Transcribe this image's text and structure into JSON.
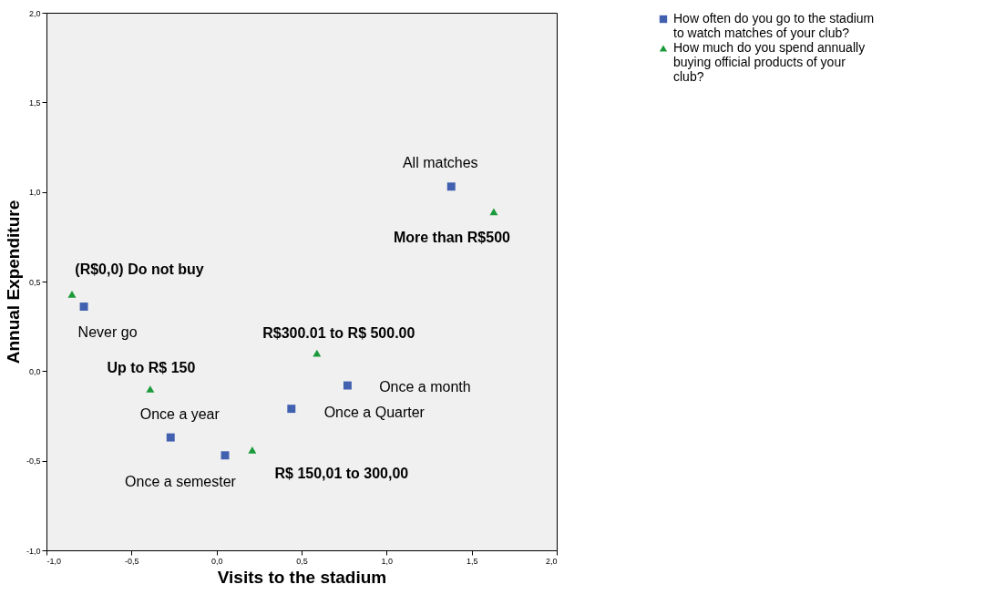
{
  "chart_data": {
    "type": "scatter",
    "xlabel": "Visits to the stadium",
    "ylabel": "Annual Expenditure",
    "xlim": [
      -1,
      2
    ],
    "ylim": [
      -1,
      2
    ],
    "xticks": [
      {
        "value": -1,
        "label": "-1,0"
      },
      {
        "value": -0.5,
        "label": "-0,5"
      },
      {
        "value": 0,
        "label": "0,0"
      },
      {
        "value": 0.5,
        "label": "0,5"
      },
      {
        "value": 1,
        "label": "1,0"
      },
      {
        "value": 1.5,
        "label": "1,5"
      },
      {
        "value": 2,
        "label": "2,0"
      }
    ],
    "yticks": [
      {
        "value": -1,
        "label": "-1,0"
      },
      {
        "value": -0.5,
        "label": "-0,5"
      },
      {
        "value": 0,
        "label": "0,0"
      },
      {
        "value": 0.5,
        "label": "0,5"
      },
      {
        "value": 1,
        "label": "1,0"
      },
      {
        "value": 1.5,
        "label": "1,5"
      },
      {
        "value": 2,
        "label": "2,0"
      }
    ],
    "grid": false,
    "legend": "top right",
    "series": [
      {
        "name": "How often do you go to the stadium to watch matches of your club?",
        "color": "#4160b0",
        "marker": "square",
        "x": [
          1.38,
          -0.78,
          0.77,
          0.44,
          -0.27,
          0.05
        ],
        "values": [
          1.03,
          0.36,
          -0.08,
          -0.21,
          -0.37,
          -0.47
        ]
      },
      {
        "name": "How much do you spend annually buying official products of your club?",
        "color": "#1a9a3a",
        "marker": "triangle",
        "x": [
          1.63,
          -0.85,
          0.59,
          -0.39,
          0.21
        ],
        "values": [
          0.89,
          0.43,
          0.1,
          -0.1,
          -0.44
        ]
      }
    ],
    "annotations": [
      {
        "text": "All matches",
        "x": 1.38,
        "y": 1.03
      },
      {
        "text": "More than R$500",
        "x": 1.63,
        "y": 0.89
      },
      {
        "text": "(R$0,0) Do not buy",
        "x": -0.85,
        "y": 0.43
      },
      {
        "text": "Never go",
        "x": -0.78,
        "y": 0.36
      },
      {
        "text": "R$300.01 to R$ 500.00",
        "x": 0.59,
        "y": 0.1
      },
      {
        "text": "Once a month",
        "x": 0.77,
        "y": -0.08
      },
      {
        "text": "Up to R$ 150",
        "x": -0.39,
        "y": -0.1
      },
      {
        "text": "Once a Quarter",
        "x": 0.44,
        "y": -0.21
      },
      {
        "text": "Once a year",
        "x": -0.27,
        "y": -0.37
      },
      {
        "text": "Once a semester",
        "x": 0.05,
        "y": -0.47
      },
      {
        "text": "R$ 150,01 to 300,00",
        "x": 0.21,
        "y": -0.44
      }
    ]
  }
}
